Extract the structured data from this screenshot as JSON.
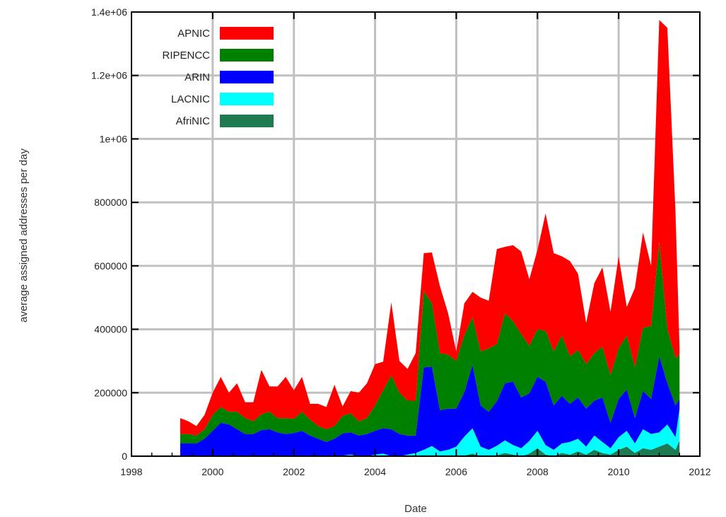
{
  "chart_data": {
    "type": "area",
    "title": "",
    "xlabel": "Date",
    "ylabel": "average assigned addresses per day",
    "xlim": [
      1998,
      2012
    ],
    "ylim": [
      0,
      1400000
    ],
    "x_ticks": [
      1998,
      2000,
      2002,
      2004,
      2006,
      2008,
      2010,
      2012
    ],
    "x_tick_labels": [
      "1998",
      "2000",
      "2002",
      "2004",
      "2006",
      "2008",
      "2010",
      "2012"
    ],
    "y_ticks": [
      0,
      200000,
      400000,
      600000,
      800000,
      1000000,
      1200000,
      1400000
    ],
    "y_tick_labels": [
      "0",
      "200000",
      "400000",
      "600000",
      "800000",
      "1e+06",
      "1.2e+06",
      "1.4e+06"
    ],
    "grid": true,
    "stacked": true,
    "legend_position": "top-left",
    "x": [
      1999.2,
      1999.4,
      1999.6,
      1999.8,
      2000.0,
      2000.2,
      2000.4,
      2000.6,
      2000.8,
      2001.0,
      2001.2,
      2001.4,
      2001.6,
      2001.8,
      2002.0,
      2002.2,
      2002.4,
      2002.6,
      2002.8,
      2003.0,
      2003.2,
      2003.4,
      2003.6,
      2003.8,
      2004.0,
      2004.2,
      2004.4,
      2004.6,
      2004.8,
      2005.0,
      2005.2,
      2005.4,
      2005.6,
      2005.8,
      2006.0,
      2006.2,
      2006.4,
      2006.6,
      2006.8,
      2007.0,
      2007.2,
      2007.4,
      2007.6,
      2007.8,
      2008.0,
      2008.2,
      2008.4,
      2008.6,
      2008.8,
      2009.0,
      2009.2,
      2009.4,
      2009.6,
      2009.8,
      2010.0,
      2010.2,
      2010.4,
      2010.6,
      2010.8,
      2011.0,
      2011.2,
      2011.4,
      2011.5
    ],
    "series": [
      {
        "name": "AFRINIC",
        "color": "#1e7a50",
        "values": [
          0,
          0,
          0,
          0,
          0,
          0,
          0,
          0,
          0,
          0,
          0,
          0,
          0,
          0,
          0,
          0,
          0,
          0,
          0,
          0,
          0,
          0,
          0,
          0,
          0,
          0,
          0,
          0,
          0,
          0,
          0,
          2000,
          0,
          0,
          0,
          2000,
          8000,
          0,
          0,
          3000,
          10000,
          5000,
          0,
          8000,
          25000,
          5000,
          0,
          10000,
          5000,
          15000,
          5000,
          20000,
          10000,
          5000,
          20000,
          30000,
          10000,
          25000,
          20000,
          30000,
          40000,
          20000,
          50000
        ]
      },
      {
        "name": "LACNIC",
        "color": "#00ffff",
        "values": [
          0,
          0,
          0,
          0,
          0,
          0,
          0,
          0,
          0,
          0,
          2000,
          0,
          0,
          0,
          3000,
          0,
          0,
          0,
          0,
          0,
          2000,
          5000,
          0,
          0,
          5000,
          8000,
          0,
          0,
          5000,
          10000,
          20000,
          30000,
          15000,
          20000,
          30000,
          60000,
          80000,
          30000,
          20000,
          30000,
          40000,
          30000,
          25000,
          40000,
          55000,
          30000,
          20000,
          30000,
          40000,
          40000,
          25000,
          45000,
          35000,
          20000,
          40000,
          50000,
          30000,
          60000,
          50000,
          45000,
          60000,
          40000,
          100000
        ]
      },
      {
        "name": "ARIN",
        "color": "#0000ff",
        "values": [
          40000,
          40000,
          40000,
          55000,
          80000,
          105000,
          100000,
          85000,
          70000,
          70000,
          80000,
          85000,
          75000,
          70000,
          70000,
          80000,
          65000,
          55000,
          45000,
          55000,
          70000,
          70000,
          65000,
          70000,
          75000,
          80000,
          85000,
          70000,
          60000,
          55000,
          260000,
          250000,
          130000,
          130000,
          120000,
          140000,
          200000,
          130000,
          120000,
          140000,
          180000,
          200000,
          160000,
          150000,
          170000,
          200000,
          140000,
          150000,
          120000,
          130000,
          120000,
          110000,
          140000,
          80000,
          120000,
          130000,
          80000,
          120000,
          110000,
          240000,
          130000,
          100000,
          30000
        ]
      },
      {
        "name": "RIPENCC",
        "color": "#008000",
        "values": [
          30000,
          30000,
          25000,
          30000,
          50000,
          50000,
          40000,
          55000,
          50000,
          40000,
          50000,
          55000,
          45000,
          50000,
          45000,
          60000,
          50000,
          40000,
          40000,
          40000,
          55000,
          60000,
          45000,
          50000,
          80000,
          120000,
          170000,
          130000,
          110000,
          110000,
          240000,
          200000,
          180000,
          170000,
          150000,
          180000,
          150000,
          170000,
          200000,
          180000,
          220000,
          190000,
          200000,
          150000,
          150000,
          160000,
          170000,
          190000,
          150000,
          150000,
          140000,
          150000,
          160000,
          150000,
          160000,
          170000,
          160000,
          200000,
          230000,
          360000,
          170000,
          150000,
          140000
        ]
      },
      {
        "name": "APNIC",
        "color": "#ff0000",
        "values": [
          50000,
          40000,
          30000,
          45000,
          70000,
          95000,
          60000,
          90000,
          50000,
          60000,
          140000,
          80000,
          100000,
          130000,
          90000,
          110000,
          50000,
          70000,
          70000,
          130000,
          30000,
          70000,
          90000,
          110000,
          130000,
          90000,
          230000,
          100000,
          100000,
          150000,
          120000,
          160000,
          210000,
          130000,
          30000,
          100000,
          80000,
          170000,
          150000,
          300000,
          210000,
          240000,
          260000,
          210000,
          250000,
          370000,
          310000,
          250000,
          300000,
          240000,
          130000,
          220000,
          250000,
          200000,
          290000,
          90000,
          250000,
          300000,
          190000,
          700000,
          950000,
          460000,
          20000
        ]
      }
    ]
  },
  "legend": [
    "APNIC",
    "RIPENCC",
    "ARIN",
    "LACNIC",
    "AfriNIC"
  ]
}
